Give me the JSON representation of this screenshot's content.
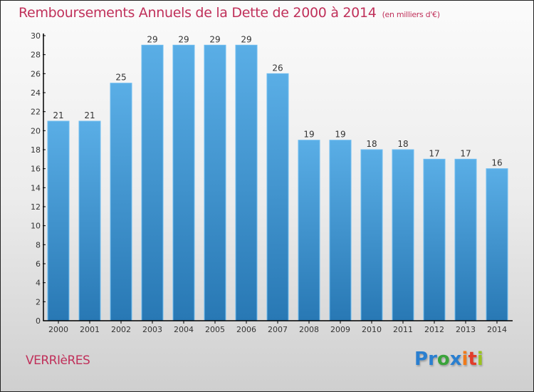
{
  "header": {
    "title": "Remboursements Annuels de la Dette de 2000 à 2014",
    "unit": "(en milliers d'€)"
  },
  "footer": {
    "commune": "VERRIèRES",
    "logo_letters": [
      {
        "ch": "P",
        "color": "#2a7fd0"
      },
      {
        "ch": "r",
        "color": "#2a7fd0"
      },
      {
        "ch": "o",
        "color": "#3aa33a"
      },
      {
        "ch": "x",
        "color": "#2a7fd0"
      },
      {
        "ch": "i",
        "color": "#f07a1a"
      },
      {
        "ch": "t",
        "color": "#e23c2a"
      },
      {
        "ch": "i",
        "color": "#9ac21f"
      }
    ]
  },
  "colors": {
    "title": "#c0305a",
    "bar_top": "#5aaee6",
    "bar_bottom": "#2878b4",
    "axis": "#000000"
  },
  "chart_data": {
    "type": "bar",
    "title": "Remboursements Annuels de la Dette de 2000 à 2014",
    "subtitle": "(en milliers d'€)",
    "xlabel": "",
    "ylabel": "",
    "categories": [
      "2000",
      "2001",
      "2002",
      "2003",
      "2004",
      "2005",
      "2006",
      "2007",
      "2008",
      "2009",
      "2010",
      "2011",
      "2012",
      "2013",
      "2014"
    ],
    "values": [
      21,
      21,
      25,
      29,
      29,
      29,
      29,
      26,
      19,
      19,
      18,
      18,
      17,
      17,
      16
    ],
    "ylim": [
      0,
      30
    ],
    "yticks": [
      0,
      2,
      4,
      6,
      8,
      10,
      12,
      14,
      16,
      18,
      20,
      22,
      24,
      26,
      28,
      30
    ],
    "grid": false,
    "legend": "none"
  }
}
